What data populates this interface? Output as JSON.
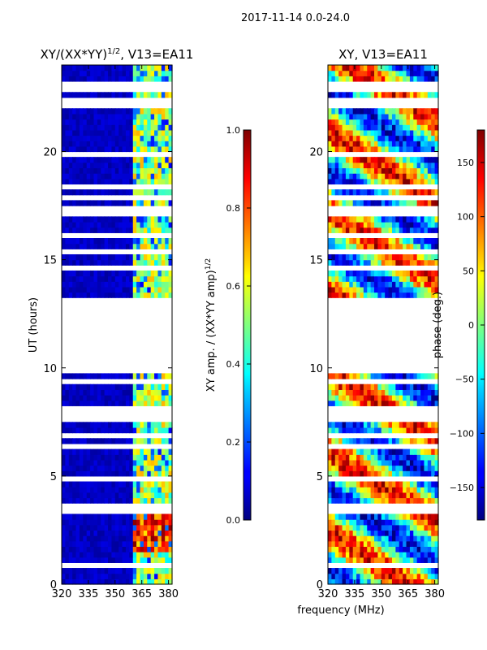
{
  "figure": {
    "suptitle": "2017-11-14 0.0-24.0",
    "xlabel": "frequency (MHz)"
  },
  "chart_data": [
    {
      "type": "heatmap",
      "title_text": "XY/(XX*YY)",
      "title_sup": "1/2",
      "title_tail": ", V13=EA11",
      "xlabel": "",
      "ylabel": "UT (hours)",
      "xlim": [
        320,
        382
      ],
      "ylim": [
        0,
        24
      ],
      "xticks": [
        320,
        335,
        350,
        365,
        380
      ],
      "yticks": [
        0,
        5,
        10,
        15,
        20
      ],
      "value_range": [
        0.0,
        1.0
      ],
      "colorbar": {
        "label_text": "XY amp. / (XX*YY amp)",
        "label_sup": "1/2",
        "ticks": [
          0.0,
          0.2,
          0.4,
          0.6,
          0.8,
          1.0
        ],
        "tick_labels": [
          "0.0",
          "0.2",
          "0.4",
          "0.6",
          "0.8",
          "1.0"
        ],
        "range": [
          0.0,
          1.0
        ]
      },
      "low_value_band_mhz": [
        320,
        361
      ],
      "high_value_band_mhz": [
        361,
        382
      ],
      "bright_interval_ut": [
        1.5,
        3.3
      ]
    },
    {
      "type": "heatmap",
      "title_text": "XY, V13=EA11",
      "xlabel": "frequency (MHz)",
      "ylabel": "",
      "xlim": [
        320,
        382
      ],
      "ylim": [
        0,
        24
      ],
      "xticks": [
        320,
        335,
        350,
        365,
        380
      ],
      "yticks": [
        0,
        5,
        10,
        15,
        20
      ],
      "value_range": [
        -180,
        180
      ],
      "colorbar": {
        "label_text": "phase (deg.)",
        "ticks": [
          -150,
          -100,
          -50,
          0,
          50,
          100,
          150
        ],
        "tick_labels": [
          "−150",
          "−100",
          "−50",
          "0",
          "50",
          "100",
          "150"
        ],
        "range": [
          -180,
          180
        ]
      }
    }
  ],
  "data_gaps_ut": [
    [
      0.25,
      0.3
    ],
    [
      0.45,
      0.5
    ],
    [
      0.85,
      0.95
    ],
    [
      1.4,
      1.5
    ],
    [
      3.3,
      3.4
    ],
    [
      3.6,
      3.7
    ],
    [
      4.8,
      4.9
    ],
    [
      5.2,
      5.3
    ],
    [
      5.4,
      5.5
    ],
    [
      5.9,
      6.0
    ],
    [
      6.3,
      6.6
    ],
    [
      6.85,
      6.95
    ],
    [
      7.2,
      7.3
    ],
    [
      7.55,
      7.65
    ],
    [
      7.85,
      7.95
    ],
    [
      8.1,
      8.2
    ],
    [
      8.4,
      8.5
    ],
    [
      8.7,
      8.8
    ],
    [
      9.0,
      9.1
    ],
    [
      9.3,
      9.6
    ],
    [
      9.8,
      9.9
    ],
    [
      10.05,
      10.15
    ],
    [
      10.3,
      10.4
    ],
    [
      10.6,
      10.7
    ],
    [
      10.85,
      10.95
    ],
    [
      11.1,
      11.2
    ],
    [
      11.35,
      11.45
    ],
    [
      11.6,
      11.7
    ],
    [
      11.85,
      11.95
    ],
    [
      12.1,
      12.2
    ],
    [
      12.35,
      12.45
    ],
    [
      12.6,
      12.7
    ],
    [
      12.85,
      13.3
    ],
    [
      13.45,
      13.55
    ],
    [
      13.7,
      13.8
    ],
    [
      13.95,
      14.05
    ],
    [
      14.2,
      14.3
    ],
    [
      14.55,
      14.65
    ],
    [
      15.3,
      15.45
    ],
    [
      15.75,
      15.85
    ],
    [
      16.1,
      16.2
    ],
    [
      16.45,
      16.55
    ],
    [
      16.95,
      17.6
    ],
    [
      17.8,
      17.95
    ],
    [
      18.3,
      18.4
    ],
    [
      19.5,
      19.6
    ],
    [
      19.85,
      19.95
    ],
    [
      20.15,
      20.25
    ],
    [
      20.65,
      20.8
    ],
    [
      21.0,
      21.1
    ],
    [
      21.25,
      21.35
    ],
    [
      21.5,
      21.6
    ],
    [
      21.75,
      21.85
    ],
    [
      22.05,
      22.15
    ],
    [
      22.35,
      22.5
    ],
    [
      22.75,
      22.95
    ],
    [
      23.05,
      23.15
    ]
  ]
}
